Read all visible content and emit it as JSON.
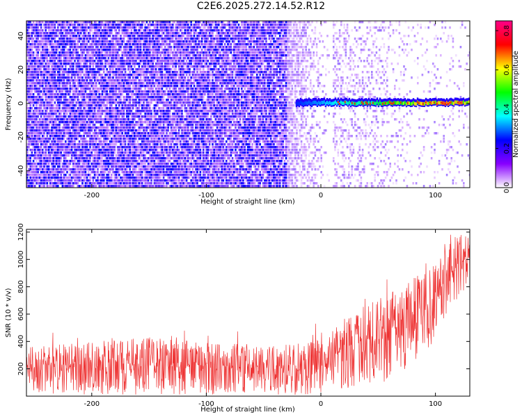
{
  "title": "C2E6.2025.272.14.52.R12",
  "chart_data": [
    {
      "type": "heatmap",
      "xlabel": "Height of straight line (km)",
      "ylabel": "Frequency (Hz)",
      "xlim": [
        -257,
        130
      ],
      "ylim": [
        -50,
        49
      ],
      "xticks": [
        -200,
        -100,
        0,
        100
      ],
      "yticks": [
        -40,
        -20,
        0,
        20,
        40
      ],
      "colorbar": {
        "label": "Normalized spectral amplitude",
        "range": [
          0.0,
          0.85
        ],
        "ticks": [
          0.0,
          0.2,
          0.4,
          0.6,
          0.8
        ],
        "colors": [
          "#ffffff",
          "#8800ff",
          "#0000ff",
          "#00ffff",
          "#00ff00",
          "#ffff00",
          "#ff0000",
          "#ff0088"
        ]
      },
      "features": {
        "noise_region_x": [
          -257,
          -20
        ],
        "noise_amplitude": 0.15,
        "signal_start_x": -22,
        "signal_frequency_hz": 0,
        "signal_amplitude": [
          0.3,
          0.8
        ]
      }
    },
    {
      "type": "line",
      "xlabel": "Height of straight line (km)",
      "ylabel": "SNR (10 * v/v)",
      "xlim": [
        -257,
        130
      ],
      "ylim": [
        0,
        1220
      ],
      "xticks": [
        -200,
        -100,
        0,
        100
      ],
      "yticks": [
        200,
        400,
        600,
        800,
        1000,
        1200
      ],
      "color": "#ee3333",
      "envelope": {
        "x": [
          -257,
          -200,
          -150,
          -100,
          -50,
          -20,
          0,
          25,
          50,
          75,
          100,
          110,
          130
        ],
        "low": [
          20,
          10,
          10,
          10,
          10,
          10,
          20,
          40,
          80,
          200,
          400,
          600,
          800
        ],
        "high": [
          360,
          400,
          430,
          400,
          390,
          380,
          420,
          620,
          720,
          840,
          980,
          1150,
          1220
        ]
      }
    }
  ]
}
